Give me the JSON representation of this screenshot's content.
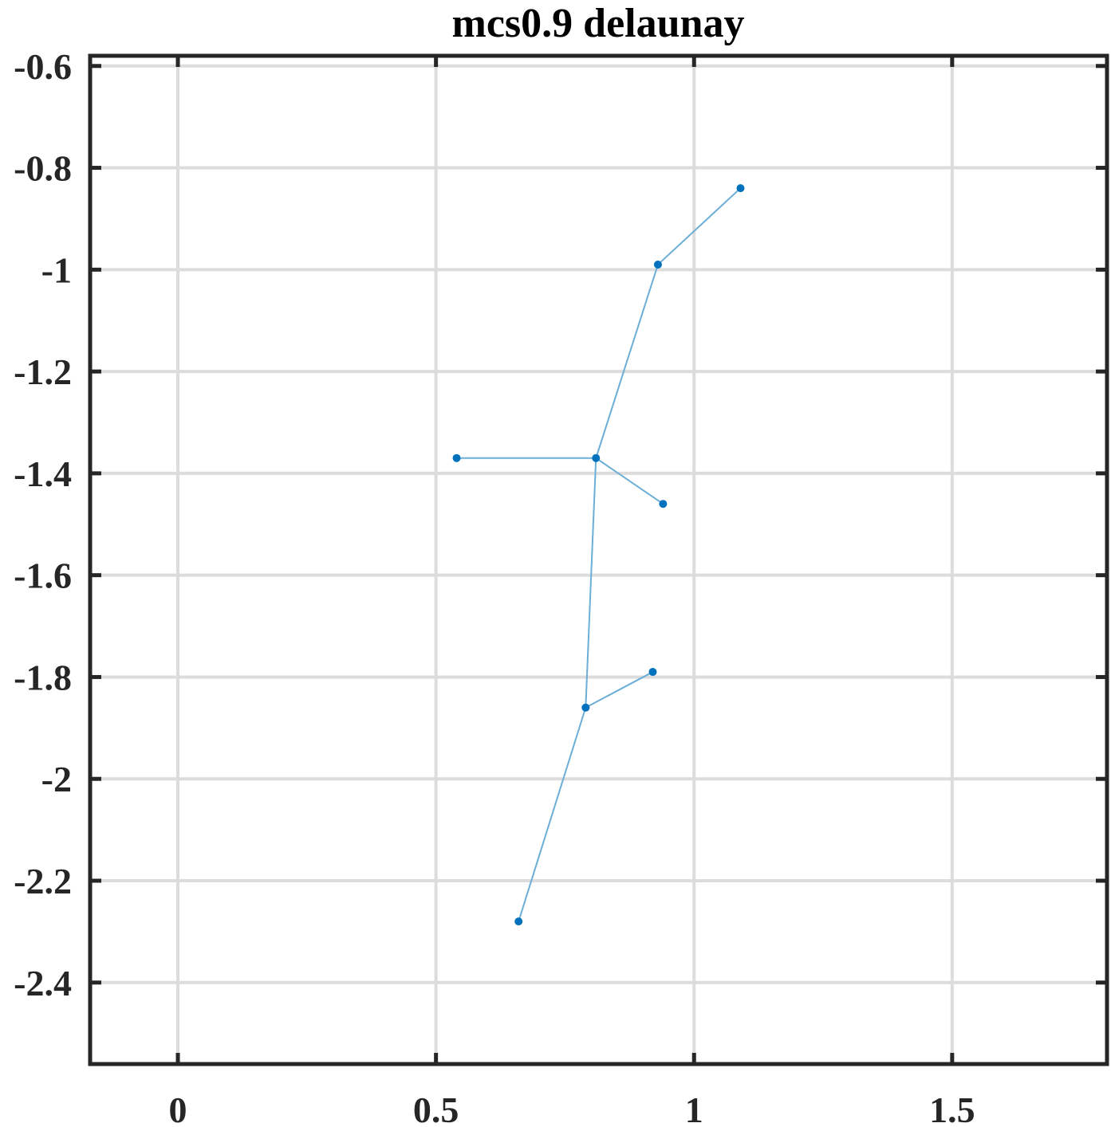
{
  "chart_data": {
    "type": "scatter",
    "title": "mcs0.9 delaunay",
    "xlabel": "",
    "ylabel": "",
    "xlim": [
      -0.17,
      1.8
    ],
    "ylim": [
      -2.56,
      -0.58
    ],
    "xticks": [
      0,
      0.5,
      1,
      1.5
    ],
    "xtick_labels": [
      "0",
      "0.5",
      "1",
      "1.5"
    ],
    "yticks": [
      -0.6,
      -0.8,
      -1,
      -1.2,
      -1.4,
      -1.6,
      -1.8,
      -2,
      -2.2,
      -2.4
    ],
    "ytick_labels": [
      "-0.6",
      "-0.8",
      "-1",
      "-1.2",
      "-1.4",
      "-1.6",
      "-1.8",
      "-2",
      "-2.2",
      "-2.4"
    ],
    "grid": true,
    "points": [
      {
        "x": 1.09,
        "y": -0.84
      },
      {
        "x": 0.93,
        "y": -0.99
      },
      {
        "x": 0.54,
        "y": -1.37
      },
      {
        "x": 0.81,
        "y": -1.37
      },
      {
        "x": 0.94,
        "y": -1.46
      },
      {
        "x": 0.92,
        "y": -1.79
      },
      {
        "x": 0.79,
        "y": -1.86
      },
      {
        "x": 0.66,
        "y": -2.28
      }
    ],
    "edges": [
      [
        0,
        1
      ],
      [
        1,
        3
      ],
      [
        2,
        3
      ],
      [
        3,
        4
      ],
      [
        3,
        6
      ],
      [
        6,
        5
      ],
      [
        6,
        7
      ]
    ],
    "colors": {
      "point": "#0072bd",
      "edge": "#6baed6",
      "grid": "#dcdcdc",
      "axis": "#262626"
    }
  }
}
